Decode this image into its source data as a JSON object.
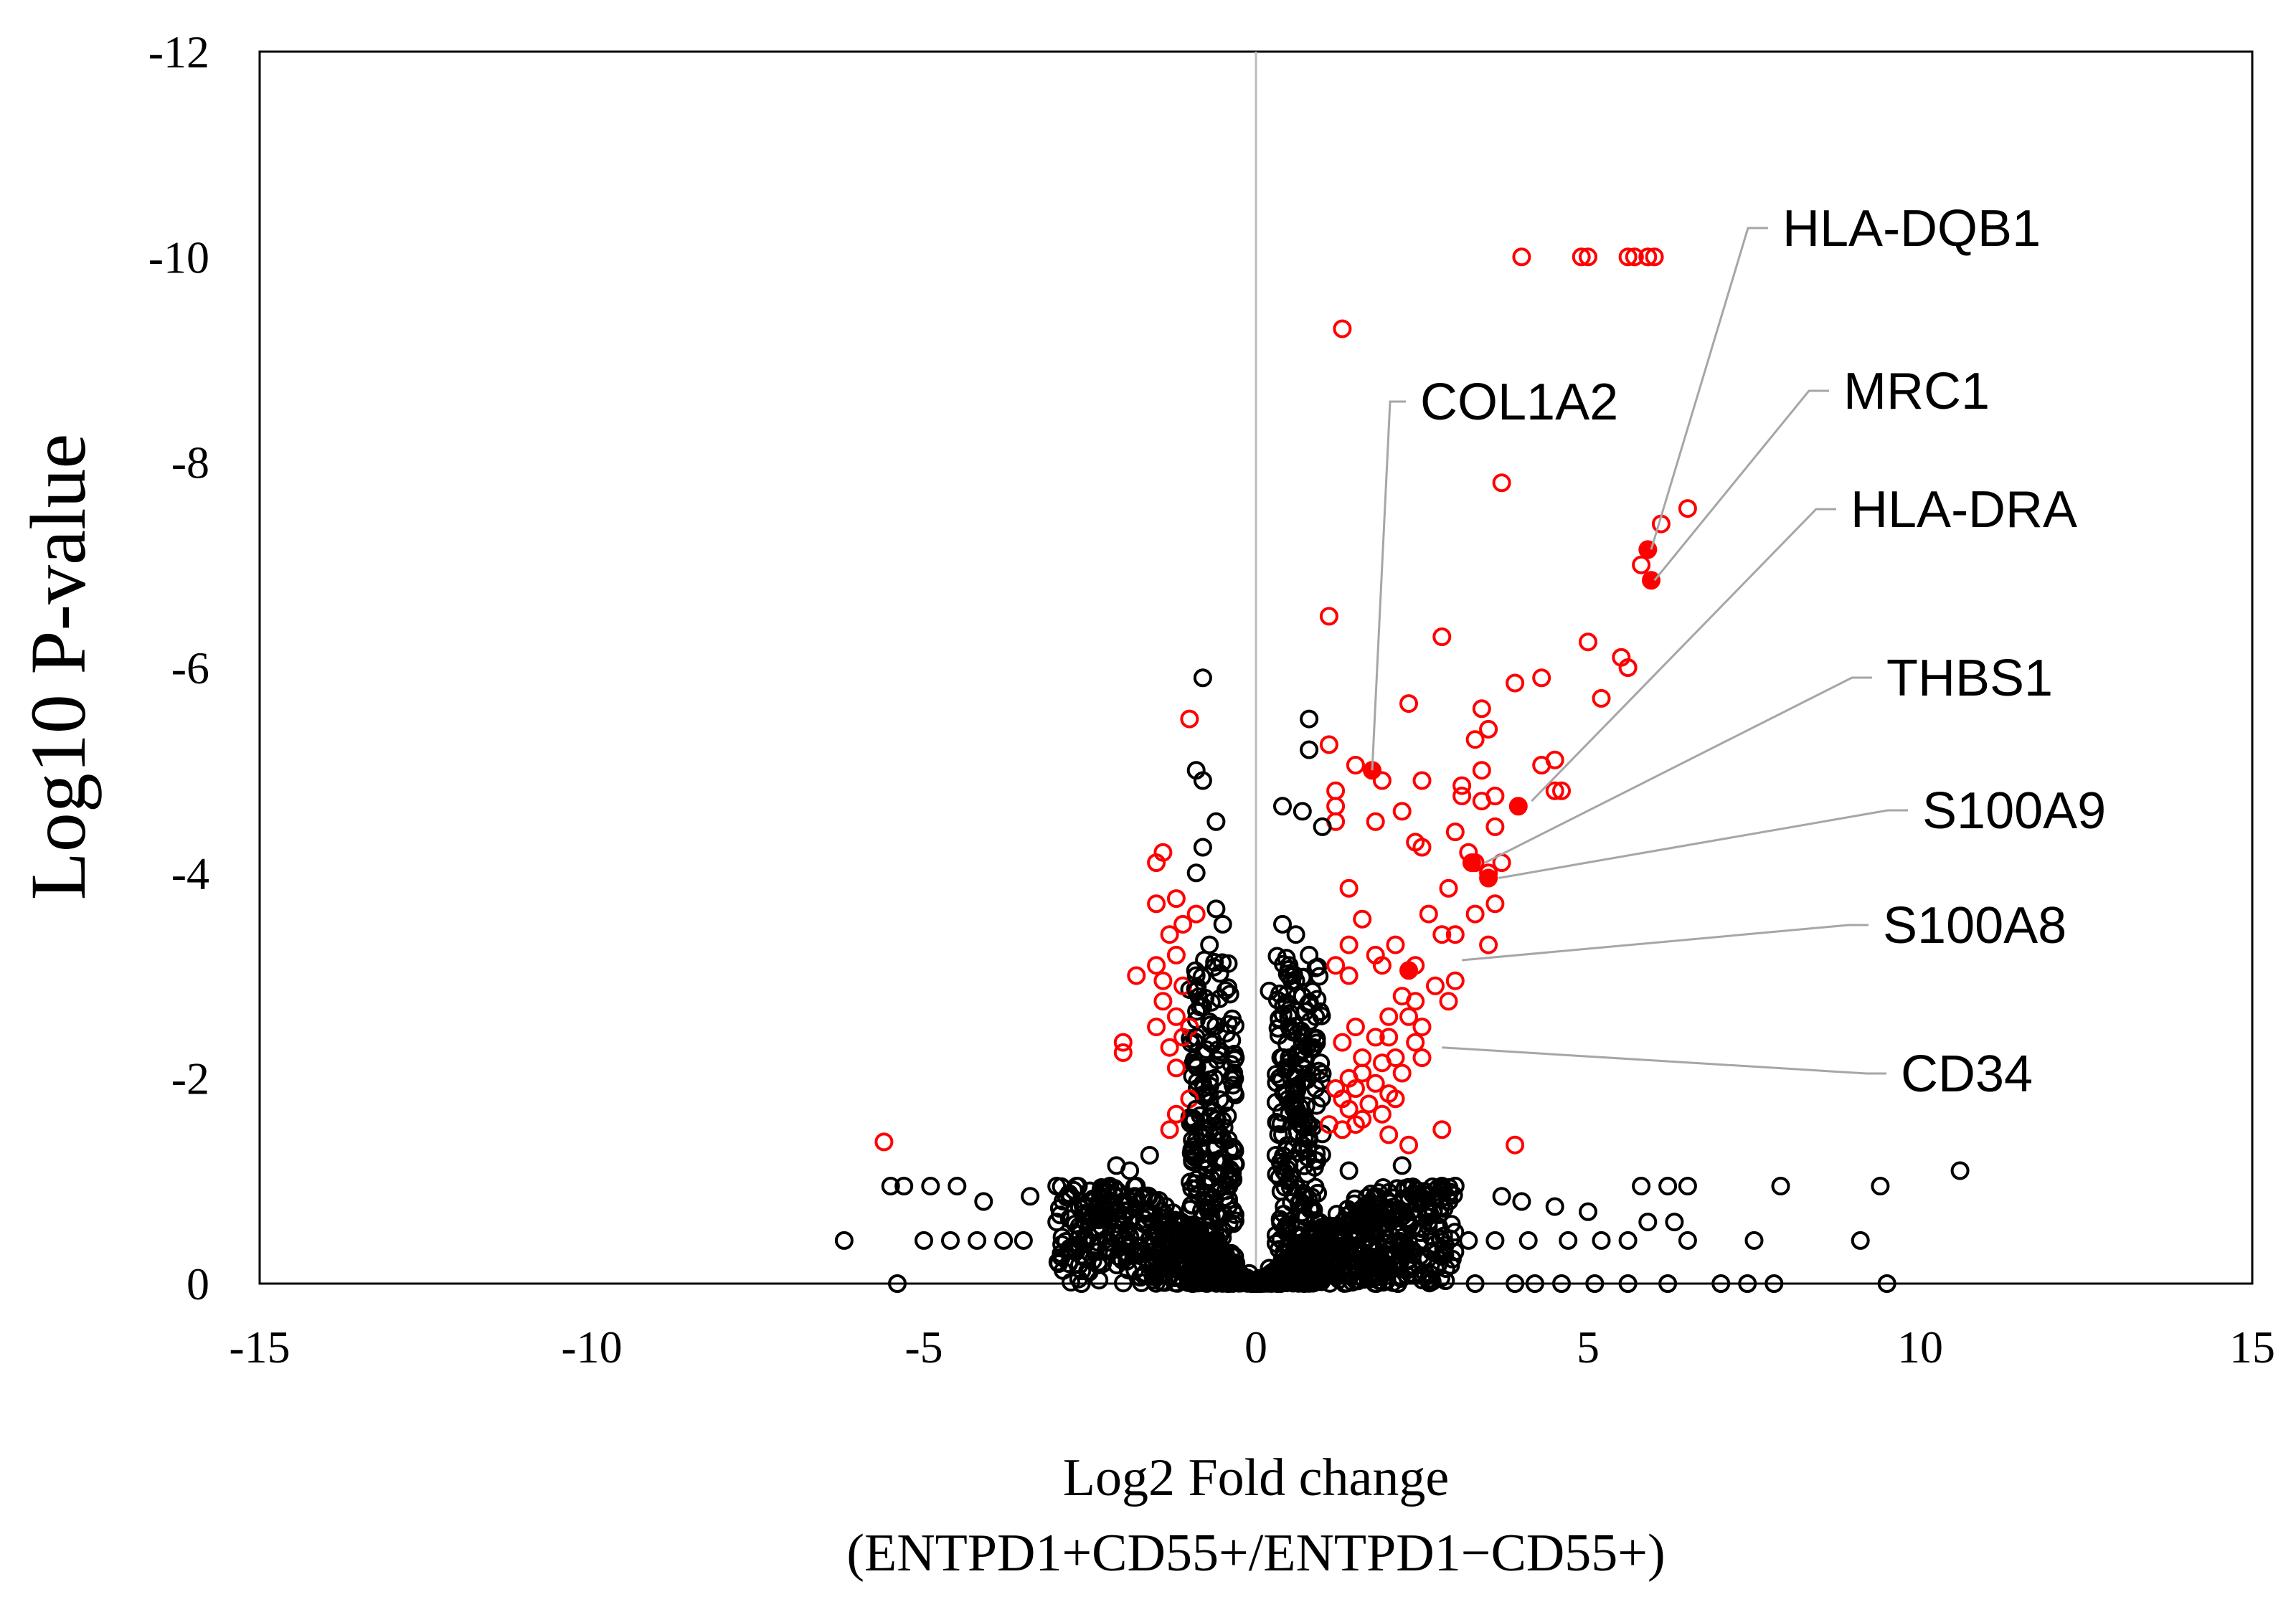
{
  "chart_data": {
    "type": "scatter",
    "title": "",
    "xlabel": "Log2 Fold change",
    "xlabel_line2": "(ENTPD1+CD55+/ENTPD1−CD55+)",
    "ylabel": "Log10 P-value",
    "xlim": [
      -15,
      15
    ],
    "ylim": [
      0,
      -12
    ],
    "y_axis_inverted": true,
    "x_ticks": [
      "-15",
      "-10",
      "-5",
      "0",
      "5",
      "10",
      "15"
    ],
    "y_ticks": [
      "0",
      "-2",
      "-4",
      "-6",
      "-8",
      "-10",
      "-12"
    ],
    "x_tick_values": [
      -15,
      -10,
      -5,
      0,
      5,
      10,
      15
    ],
    "y_tick_values": [
      0,
      -2,
      -4,
      -6,
      -8,
      -10,
      -12
    ],
    "reference_line_x": 0,
    "grid": false,
    "legend": "none",
    "colors": {
      "significant": "#ff0000",
      "not_significant": "#000000",
      "reference_line": "#bdbdbd",
      "leader_line": "#a6a6a6"
    },
    "series": [
      {
        "color": "#ff0000",
        "points": [
          [
            4.0,
            -10.0
          ],
          [
            4.9,
            -10.0
          ],
          [
            5.0,
            -10.0
          ],
          [
            5.6,
            -10.0
          ],
          [
            5.7,
            -10.0
          ],
          [
            5.9,
            -10.0
          ],
          [
            6.0,
            -10.0
          ],
          [
            1.3,
            -9.3
          ],
          [
            3.7,
            -7.8
          ],
          [
            6.5,
            -7.55
          ],
          [
            6.1,
            -7.4
          ],
          [
            5.8,
            -7.0
          ],
          [
            1.1,
            -6.5
          ],
          [
            2.8,
            -6.3
          ],
          [
            5.0,
            -6.25
          ],
          [
            5.5,
            -6.1
          ],
          [
            5.6,
            -6.0
          ],
          [
            3.9,
            -5.85
          ],
          [
            4.3,
            -5.9
          ],
          [
            5.2,
            -5.7
          ],
          [
            2.3,
            -5.65
          ],
          [
            3.4,
            -5.6
          ],
          [
            -1.0,
            -5.5
          ],
          [
            3.5,
            -5.4
          ],
          [
            4.5,
            -5.1
          ],
          [
            1.1,
            -5.25
          ],
          [
            3.3,
            -5.3
          ],
          [
            1.5,
            -5.05
          ],
          [
            4.3,
            -5.05
          ],
          [
            3.4,
            -5.0
          ],
          [
            1.9,
            -4.9
          ],
          [
            2.5,
            -4.9
          ],
          [
            3.1,
            -4.85
          ],
          [
            1.2,
            -4.8
          ],
          [
            3.4,
            -4.7
          ],
          [
            4.6,
            -4.8
          ],
          [
            3.6,
            -4.75
          ],
          [
            3.1,
            -4.75
          ],
          [
            4.5,
            -4.8
          ],
          [
            1.2,
            -4.65
          ],
          [
            2.2,
            -4.6
          ],
          [
            1.2,
            -4.5
          ],
          [
            1.8,
            -4.5
          ],
          [
            3.0,
            -4.4
          ],
          [
            3.6,
            -4.45
          ],
          [
            2.4,
            -4.3
          ],
          [
            2.5,
            -4.25
          ],
          [
            3.2,
            -4.2
          ],
          [
            -1.4,
            -4.2
          ],
          [
            -1.5,
            -4.1
          ],
          [
            3.3,
            -4.1
          ],
          [
            3.7,
            -4.1
          ],
          [
            3.5,
            -4.0
          ],
          [
            1.4,
            -3.85
          ],
          [
            2.9,
            -3.85
          ],
          [
            -1.2,
            -3.75
          ],
          [
            -1.5,
            -3.7
          ],
          [
            3.6,
            -3.7
          ],
          [
            -0.9,
            -3.6
          ],
          [
            -1.1,
            -3.5
          ],
          [
            2.6,
            -3.6
          ],
          [
            3.3,
            -3.6
          ],
          [
            1.6,
            -3.55
          ],
          [
            3.0,
            -3.4
          ],
          [
            2.8,
            -3.4
          ],
          [
            -1.3,
            -3.4
          ],
          [
            1.4,
            -3.3
          ],
          [
            2.1,
            -3.3
          ],
          [
            3.5,
            -3.3
          ],
          [
            1.8,
            -3.2
          ],
          [
            -1.2,
            -3.2
          ],
          [
            -1.5,
            -3.1
          ],
          [
            1.2,
            -3.1
          ],
          [
            1.9,
            -3.1
          ],
          [
            2.4,
            -3.1
          ],
          [
            -1.8,
            -3.0
          ],
          [
            1.4,
            -3.0
          ],
          [
            -1.1,
            -2.9
          ],
          [
            -1.4,
            -2.95
          ],
          [
            3.0,
            -2.95
          ],
          [
            2.7,
            -2.9
          ],
          [
            2.2,
            -2.8
          ],
          [
            -1.4,
            -2.75
          ],
          [
            2.4,
            -2.75
          ],
          [
            2.9,
            -2.75
          ],
          [
            -1.2,
            -2.6
          ],
          [
            -1.0,
            -2.5
          ],
          [
            2.0,
            -2.6
          ],
          [
            2.3,
            -2.6
          ],
          [
            -1.5,
            -2.5
          ],
          [
            2.5,
            -2.5
          ],
          [
            1.5,
            -2.5
          ],
          [
            1.8,
            -2.4
          ],
          [
            -2.0,
            -2.35
          ],
          [
            -1.1,
            -2.4
          ],
          [
            2.0,
            -2.4
          ],
          [
            2.4,
            -2.35
          ],
          [
            1.3,
            -2.35
          ],
          [
            -2.0,
            -2.25
          ],
          [
            -1.3,
            -2.3
          ],
          [
            1.6,
            -2.2
          ],
          [
            2.1,
            -2.2
          ],
          [
            2.5,
            -2.2
          ],
          [
            1.9,
            -2.15
          ],
          [
            -1.2,
            -2.1
          ],
          [
            1.4,
            -2.0
          ],
          [
            1.6,
            -2.05
          ],
          [
            2.2,
            -2.05
          ],
          [
            1.8,
            -1.95
          ],
          [
            1.2,
            -1.9
          ],
          [
            1.5,
            -1.9
          ],
          [
            2.0,
            -1.85
          ],
          [
            -1.0,
            -1.8
          ],
          [
            1.3,
            -1.8
          ],
          [
            1.7,
            -1.75
          ],
          [
            2.1,
            -1.8
          ],
          [
            1.4,
            -1.7
          ],
          [
            -1.2,
            -1.65
          ],
          [
            1.9,
            -1.65
          ],
          [
            1.6,
            -1.6
          ],
          [
            1.1,
            -1.55
          ],
          [
            1.5,
            -1.55
          ],
          [
            -1.3,
            -1.5
          ],
          [
            1.3,
            -1.5
          ],
          [
            2.8,
            -1.5
          ],
          [
            2.0,
            -1.45
          ],
          [
            2.3,
            -1.35
          ],
          [
            3.9,
            -1.35
          ],
          [
            -5.6,
            -1.38
          ]
        ]
      },
      {
        "color": "#ff0000",
        "filled": true,
        "points": [
          [
            1.75,
            -5.0
          ],
          [
            5.9,
            -7.15
          ],
          [
            5.95,
            -6.85
          ],
          [
            3.95,
            -4.65
          ],
          [
            3.25,
            -4.1
          ],
          [
            3.5,
            -3.95
          ],
          [
            2.3,
            -3.05
          ]
        ]
      },
      {
        "color": "#000000",
        "points": [
          [
            -0.8,
            -5.9
          ],
          [
            0.8,
            -5.5
          ],
          [
            -0.9,
            -5.0
          ],
          [
            -0.8,
            -4.9
          ],
          [
            0.8,
            -5.2
          ],
          [
            -0.6,
            -4.5
          ],
          [
            0.4,
            -4.65
          ],
          [
            0.7,
            -4.6
          ],
          [
            1.0,
            -4.45
          ],
          [
            -0.8,
            -4.25
          ],
          [
            -0.9,
            -4.0
          ],
          [
            -0.6,
            -3.65
          ],
          [
            -0.5,
            -3.5
          ],
          [
            0.4,
            -3.5
          ],
          [
            0.6,
            -3.4
          ],
          [
            -0.7,
            -3.3
          ],
          [
            0.8,
            -3.2
          ],
          [
            0.5,
            -3.1
          ],
          [
            -0.9,
            -3.0
          ],
          [
            0.6,
            -2.95
          ],
          [
            -0.9,
            -2.85
          ],
          [
            0.2,
            -2.85
          ],
          [
            0.7,
            -2.8
          ],
          [
            -0.8,
            -2.7
          ],
          [
            0.9,
            -2.6
          ],
          [
            -0.7,
            -2.55
          ],
          [
            0.5,
            -2.5
          ],
          [
            -0.9,
            -2.4
          ],
          [
            0.7,
            -2.35
          ],
          [
            -0.8,
            -2.25
          ],
          [
            0.5,
            -2.2
          ],
          [
            -0.7,
            -2.1
          ],
          [
            0.6,
            -2.05
          ],
          [
            -0.8,
            -1.95
          ],
          [
            0.9,
            -1.9
          ],
          [
            -0.7,
            -1.85
          ],
          [
            0.6,
            -1.8
          ],
          [
            -0.9,
            -1.7
          ],
          [
            0.5,
            -1.65
          ],
          [
            -0.6,
            -1.6
          ],
          [
            0.8,
            -1.55
          ],
          [
            -0.7,
            -1.5
          ],
          [
            0.4,
            -1.45
          ],
          [
            -0.5,
            -1.4
          ],
          [
            0.7,
            -1.35
          ],
          [
            -0.4,
            -1.3
          ],
          [
            0.3,
            -1.25
          ],
          [
            -0.6,
            -1.2
          ],
          [
            0.5,
            -1.15
          ],
          [
            -1.6,
            -1.25
          ],
          [
            -2.1,
            -1.15
          ],
          [
            2.2,
            -1.15
          ],
          [
            1.4,
            -1.1
          ],
          [
            -1.9,
            -1.1
          ],
          [
            10.6,
            -1.1
          ],
          [
            7.9,
            -0.95
          ],
          [
            9.4,
            -0.95
          ],
          [
            -5.5,
            -0.95
          ],
          [
            -5.3,
            -0.95
          ],
          [
            -4.9,
            -0.95
          ],
          [
            -4.5,
            -0.95
          ],
          [
            -3.0,
            -0.95
          ],
          [
            -2.7,
            -0.95
          ],
          [
            -2.2,
            -0.95
          ],
          [
            2.8,
            -0.95
          ],
          [
            3.0,
            -0.95
          ],
          [
            5.8,
            -0.95
          ],
          [
            6.2,
            -0.95
          ],
          [
            6.5,
            -0.95
          ],
          [
            -1.8,
            -0.95
          ],
          [
            -3.4,
            -0.85
          ],
          [
            -4.1,
            -0.8
          ],
          [
            3.7,
            -0.85
          ],
          [
            4.0,
            -0.8
          ],
          [
            4.5,
            -0.75
          ],
          [
            5.0,
            -0.7
          ],
          [
            5.9,
            -0.6
          ],
          [
            6.3,
            -0.6
          ],
          [
            -6.2,
            -0.42
          ],
          [
            -5.0,
            -0.42
          ],
          [
            -4.6,
            -0.42
          ],
          [
            -4.2,
            -0.42
          ],
          [
            -3.8,
            -0.42
          ],
          [
            -3.5,
            -0.42
          ],
          [
            3.2,
            -0.42
          ],
          [
            3.6,
            -0.42
          ],
          [
            4.1,
            -0.42
          ],
          [
            4.7,
            -0.42
          ],
          [
            5.2,
            -0.42
          ],
          [
            5.6,
            -0.42
          ],
          [
            6.5,
            -0.42
          ],
          [
            7.5,
            -0.42
          ],
          [
            9.1,
            -0.42
          ],
          [
            -5.4,
            0
          ],
          [
            3.3,
            0
          ],
          [
            3.9,
            0
          ],
          [
            4.2,
            0
          ],
          [
            4.6,
            0
          ],
          [
            5.1,
            0
          ],
          [
            5.6,
            0
          ],
          [
            6.2,
            0
          ],
          [
            7.0,
            0
          ],
          [
            7.4,
            0
          ],
          [
            7.8,
            0
          ],
          [
            9.5,
            0
          ],
          [
            -3.0,
            -0.6
          ],
          [
            -2.5,
            -0.7
          ],
          [
            2.6,
            -0.7
          ],
          [
            1.8,
            -0.65
          ],
          [
            -1.4,
            -0.6
          ],
          [
            1.2,
            -0.55
          ],
          [
            -1.0,
            -0.5
          ],
          [
            0.9,
            -0.45
          ],
          [
            -0.7,
            -0.4
          ],
          [
            0.6,
            -0.35
          ],
          [
            -0.5,
            -0.3
          ],
          [
            0.4,
            -0.25
          ],
          [
            -0.3,
            -0.2
          ],
          [
            0.2,
            -0.15
          ],
          [
            -0.1,
            -0.1
          ],
          [
            0.05,
            -0.05
          ],
          [
            0,
            0
          ],
          [
            -0.2,
            -0.05
          ],
          [
            0.3,
            -0.1
          ],
          [
            -0.4,
            -0.15
          ],
          [
            0.5,
            -0.2
          ],
          [
            -0.6,
            -0.25
          ],
          [
            0.7,
            -0.3
          ],
          [
            -0.8,
            -0.35
          ],
          [
            1.0,
            -0.4
          ],
          [
            -1.2,
            -0.42
          ],
          [
            1.5,
            -0.42
          ],
          [
            -2.0,
            -0.42
          ],
          [
            2.3,
            -0.42
          ],
          [
            -2.6,
            -0.42
          ]
        ]
      }
    ],
    "annotations": [
      {
        "label": "HLA-DQB1",
        "x": 5.95,
        "y": -7.15
      },
      {
        "label": "MRC1",
        "x": 6.0,
        "y": -6.85
      },
      {
        "label": "HLA-DRA",
        "x": 4.15,
        "y": -4.7
      },
      {
        "label": "THBS1",
        "x": 3.45,
        "y": -4.1
      },
      {
        "label": "S100A9",
        "x": 3.65,
        "y": -3.95
      },
      {
        "label": "S100A8",
        "x": 3.1,
        "y": -3.15
      },
      {
        "label": "CD34",
        "x": 2.8,
        "y": -2.3
      },
      {
        "label": "COL1A2",
        "x": 1.75,
        "y": -5.0
      }
    ]
  }
}
